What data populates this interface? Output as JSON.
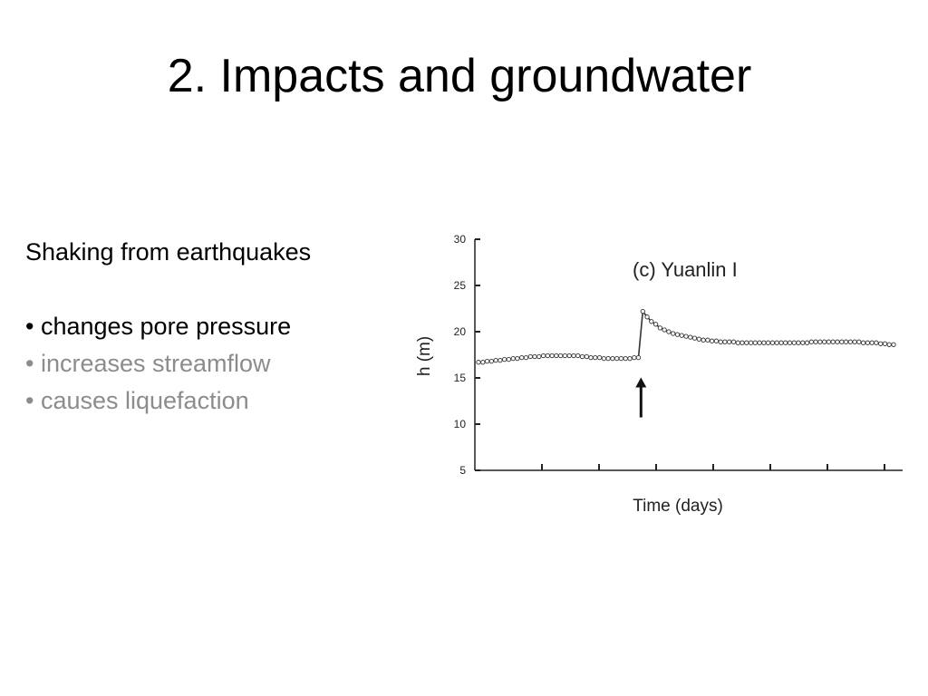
{
  "slide": {
    "title": "2. Impacts and groundwater",
    "intro": "Shaking from earthquakes",
    "bullets": [
      {
        "text": "• changes pore pressure",
        "muted": false
      },
      {
        "text": "• increases streamflow",
        "muted": true
      },
      {
        "text": "• causes liquefaction",
        "muted": true
      }
    ]
  },
  "chart_data": {
    "type": "scatter",
    "title": "(c) Yuanlin I",
    "xlabel": "Time (days)",
    "ylabel": "h (m)",
    "ylim": [
      5,
      30
    ],
    "yticks": [
      5,
      10,
      15,
      20,
      25,
      30
    ],
    "xticks_unlabeled": 7,
    "x": [
      0,
      1,
      2,
      3,
      4,
      5,
      6,
      7,
      8,
      9,
      10,
      11,
      12,
      13,
      14,
      15,
      16,
      17,
      18,
      19,
      20,
      21,
      22,
      23,
      24,
      25,
      26,
      27,
      28,
      29,
      30,
      31,
      32,
      33,
      34,
      35,
      36,
      37,
      38,
      39,
      40,
      41,
      42,
      43,
      44,
      45,
      46,
      47,
      48,
      49,
      50,
      51,
      52,
      53,
      54,
      55,
      56,
      57,
      58,
      59,
      60,
      61,
      62,
      63,
      64,
      65,
      66,
      67,
      68,
      69,
      70,
      71,
      72,
      73,
      74,
      75,
      76,
      77,
      78,
      79,
      80,
      81,
      82,
      83,
      84,
      85,
      86,
      87,
      88,
      89,
      90,
      91,
      92,
      93,
      94,
      95,
      96
    ],
    "y": [
      16.7,
      16.7,
      16.8,
      16.8,
      16.9,
      16.9,
      17.0,
      17.0,
      17.1,
      17.1,
      17.2,
      17.2,
      17.3,
      17.3,
      17.3,
      17.4,
      17.4,
      17.4,
      17.4,
      17.4,
      17.4,
      17.4,
      17.4,
      17.4,
      17.3,
      17.3,
      17.2,
      17.2,
      17.2,
      17.1,
      17.1,
      17.1,
      17.1,
      17.1,
      17.1,
      17.1,
      17.2,
      17.2,
      22.2,
      21.6,
      21.1,
      20.8,
      20.4,
      20.2,
      20.0,
      19.8,
      19.7,
      19.6,
      19.5,
      19.4,
      19.3,
      19.2,
      19.1,
      19.1,
      19.0,
      19.0,
      18.9,
      18.9,
      18.9,
      18.9,
      18.8,
      18.8,
      18.8,
      18.8,
      18.8,
      18.8,
      18.8,
      18.8,
      18.8,
      18.8,
      18.8,
      18.8,
      18.8,
      18.8,
      18.8,
      18.8,
      18.8,
      18.9,
      18.9,
      18.9,
      18.9,
      18.9,
      18.9,
      18.9,
      18.9,
      18.9,
      18.9,
      18.9,
      18.9,
      18.8,
      18.8,
      18.8,
      18.8,
      18.7,
      18.7,
      18.6,
      18.6
    ],
    "earthquake_marker_x": 38,
    "grid": false,
    "legend": "none"
  }
}
